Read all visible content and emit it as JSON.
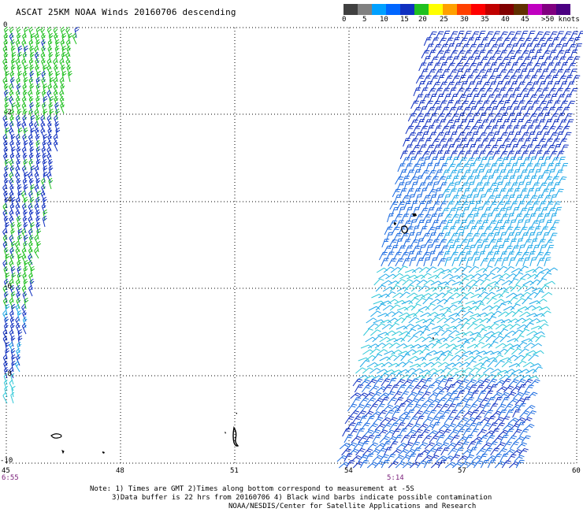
{
  "title": "ASCAT 25KM NOAA Winds 20160706 descending",
  "scale": {
    "labels": [
      "0",
      "5",
      "10",
      "15",
      "20",
      "25",
      "30",
      "35",
      "40",
      "45",
      ">50 knots"
    ],
    "colors": [
      "#404040",
      "#808080",
      "#00a0ff",
      "#0066ff",
      "#1030c0",
      "#20c020",
      "#ffff00",
      "#ffa000",
      "#ff4000",
      "#ff0000",
      "#c00000",
      "#800000",
      "#603000",
      "#c000c0",
      "#800080",
      "#4b0082"
    ]
  },
  "axes": {
    "x_ticks": [
      "45",
      "48",
      "51",
      "54",
      "57",
      "60"
    ],
    "y_ticks": [
      "0",
      "-2",
      "-4",
      "-6",
      "-8",
      "-10"
    ]
  },
  "pass_times": [
    "6:55",
    "5:14"
  ],
  "notes": {
    "line1": "Note: 1) Times are GMT 2)Times along bottom correspond to measurement at -5S",
    "line2": "3)Data buffer is 22 hrs from 20160706 4) Black wind barbs indicate possible contamination",
    "line3": "NOAA/NESDIS/Center for Satellite Applications and Research"
  },
  "barb_colors": {
    "green": "#20c020",
    "blue": "#1030c0",
    "mid_blue": "#1a6ae0",
    "light_blue": "#20a8e8",
    "cyan": "#30c8d8"
  }
}
